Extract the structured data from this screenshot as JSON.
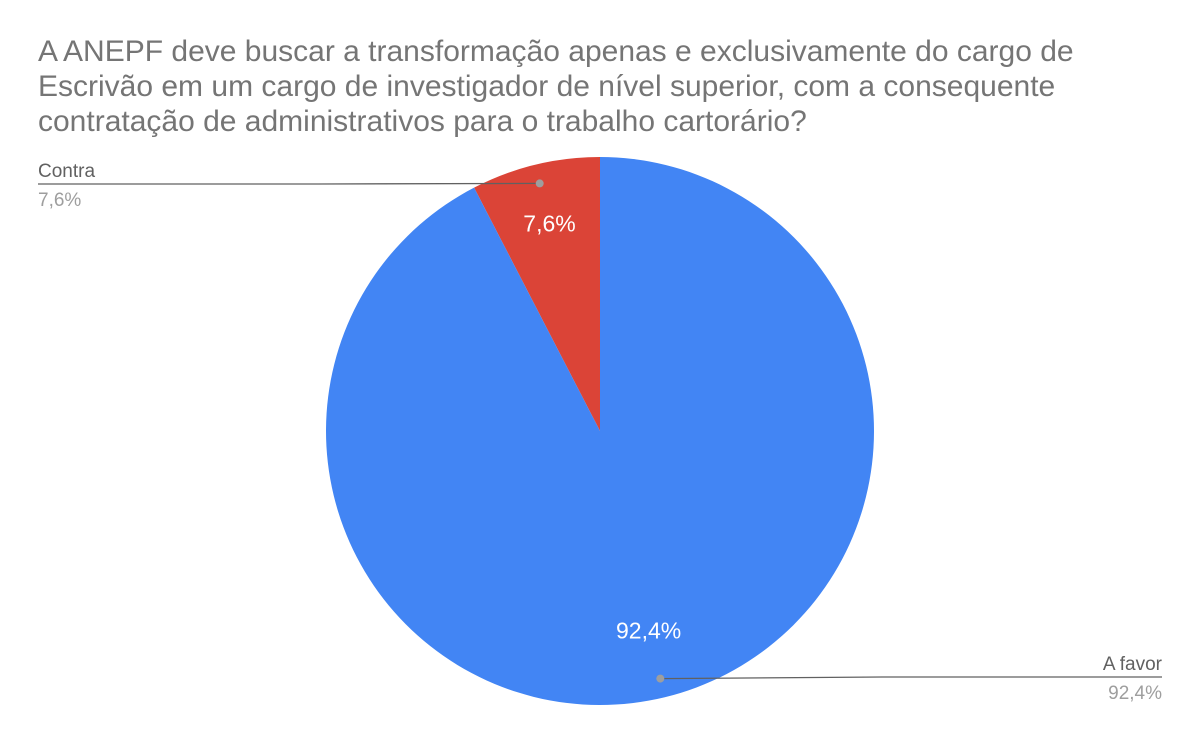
{
  "chart_data": {
    "type": "pie",
    "title_lines": [
      "A ANEPF deve buscar a transformação apenas e exclusivamente do cargo de",
      "Escrivão em um cargo de investigador de nível superior, com a consequente",
      "contratação de administrativos para o trabalho cartorário?"
    ],
    "start_angle_deg": 0,
    "direction": "counterclockwise",
    "slices": [
      {
        "label": "Contra",
        "value": 7.6,
        "display": "7,6%",
        "color": "#db4437",
        "callout_side": "left"
      },
      {
        "label": "A favor",
        "value": 92.4,
        "display": "92,4%",
        "color": "#4285f4",
        "callout_side": "right"
      }
    ],
    "slice_label_color": "#ffffff",
    "callout_name_color": "#616161",
    "callout_value_color": "#9e9e9e",
    "leader_color": "#616161"
  }
}
